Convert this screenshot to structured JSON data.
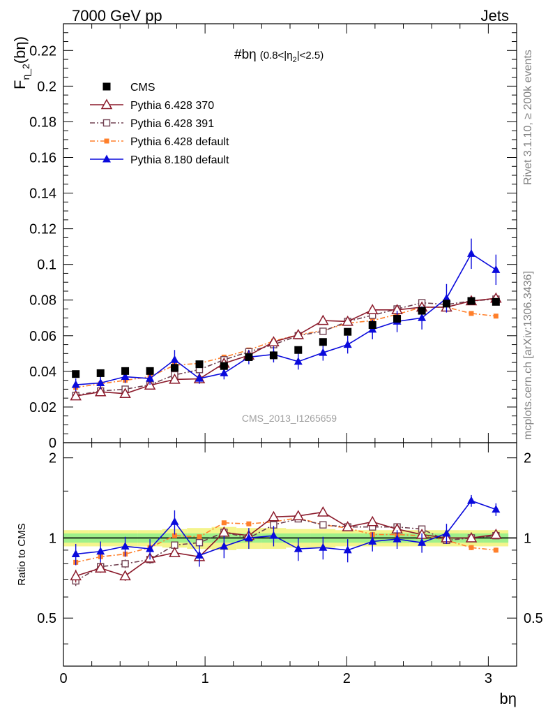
{
  "header": {
    "left": "7000 GeV pp",
    "right": "Jets"
  },
  "side_labels": {
    "rivet": "Rivet 3.1.10, ≥ 200k events",
    "mcplots": "mcplots.cern.ch [arXiv:1306.3436]"
  },
  "watermark": "CMS_2013_I1265659",
  "chart_data": [
    {
      "type": "scatter",
      "panel": "main",
      "title": "#bη (0.8<|η₂|<2.5)",
      "title_main": "#bη",
      "title_cut_a": "(0.8<|η",
      "title_cut_sub": "2",
      "title_cut_b": "|<2.5)",
      "ylabel_main": "F",
      "ylabel_sub": "η_2",
      "ylabel_arg": "(bη)",
      "xlabel": "bη",
      "xlim": [
        0,
        3.2
      ],
      "ylim": [
        0,
        0.235
      ],
      "yticks": [
        0,
        0.02,
        0.04,
        0.06,
        0.08,
        0.1,
        0.12,
        0.14,
        0.16,
        0.18,
        0.2,
        0.22
      ],
      "ytick_labels": [
        "0",
        "0.02",
        "0.04",
        "0.06",
        "0.08",
        "0.1",
        "0.12",
        "0.14",
        "0.16",
        "0.18",
        "0.2",
        "0.22"
      ],
      "x": [
        0.087,
        0.262,
        0.436,
        0.611,
        0.785,
        0.96,
        1.134,
        1.309,
        1.484,
        1.658,
        1.833,
        2.007,
        2.182,
        2.356,
        2.531,
        2.705,
        2.88,
        3.054
      ],
      "legend": [
        "CMS",
        "Pythia 6.428 370",
        "Pythia 6.428 391",
        "Pythia 6.428 default",
        "Pythia 8.180 default"
      ],
      "series": [
        {
          "name": "CMS",
          "color": "#000000",
          "values": [
            0.0385,
            0.039,
            0.0402,
            0.0402,
            0.042,
            0.044,
            0.043,
            0.048,
            0.049,
            0.052,
            0.0565,
            0.0622,
            0.066,
            0.0695,
            0.074,
            0.078,
            0.0795,
            0.079
          ]
        },
        {
          "name": "Pythia 6.428 370",
          "color": "#8b1a2b",
          "values": [
            0.0262,
            0.0285,
            0.0275,
            0.0322,
            0.0355,
            0.0358,
            0.0445,
            0.049,
            0.0565,
            0.0605,
            0.0685,
            0.068,
            0.0745,
            0.0745,
            0.076,
            0.076,
            0.0795,
            0.081
          ],
          "errors": [
            0.0015,
            0.0012,
            0.0012,
            0.0012,
            0.0012,
            0.0013,
            0.0015,
            0.0015,
            0.0015,
            0.0015,
            0.0016,
            0.0016,
            0.0018,
            0.0018,
            0.002,
            0.002,
            0.0022,
            0.0025
          ]
        },
        {
          "name": "Pythia 6.428 391",
          "color": "#704050",
          "values": [
            0.0265,
            0.029,
            0.03,
            0.0325,
            0.038,
            0.041,
            0.0465,
            0.051,
            0.055,
            0.06,
            0.0625,
            0.068,
            0.0715,
            0.075,
            0.0785,
            0.0775,
            0.0795,
            0.0805
          ],
          "errors": [
            0.0012,
            0.0011,
            0.0011,
            0.0011,
            0.0011,
            0.0012,
            0.0012,
            0.0013,
            0.0013,
            0.0014,
            0.0014,
            0.0015,
            0.0015,
            0.0016,
            0.0016,
            0.0017,
            0.0018,
            0.002
          ]
        },
        {
          "name": "Pythia 6.428 default",
          "color": "#ff7f2a",
          "values": [
            0.031,
            0.033,
            0.035,
            0.037,
            0.0435,
            0.0445,
            0.048,
            0.052,
            0.057,
            0.0605,
            0.063,
            0.067,
            0.0685,
            0.072,
            0.076,
            0.076,
            0.0725,
            0.071
          ],
          "errors": [
            0.0008,
            0.0008,
            0.0008,
            0.0008,
            0.0008,
            0.0008,
            0.0009,
            0.0009,
            0.0009,
            0.001,
            0.001,
            0.001,
            0.0011,
            0.0011,
            0.0012,
            0.0012,
            0.0012,
            0.0013
          ]
        },
        {
          "name": "Pythia 8.180 default",
          "color": "#0a0adc",
          "values": [
            0.0325,
            0.0335,
            0.037,
            0.036,
            0.0465,
            0.036,
            0.039,
            0.048,
            0.0495,
            0.0455,
            0.0505,
            0.055,
            0.0635,
            0.068,
            0.07,
            0.081,
            0.106,
            0.097
          ],
          "errors": [
            0.0035,
            0.0035,
            0.0035,
            0.0035,
            0.0055,
            0.003,
            0.0035,
            0.004,
            0.0045,
            0.0045,
            0.0045,
            0.005,
            0.0055,
            0.006,
            0.0065,
            0.008,
            0.0085,
            0.0085
          ]
        }
      ]
    },
    {
      "type": "scatter",
      "panel": "ratio",
      "ylabel": "Ratio to CMS",
      "xlabel": "bη",
      "xlim": [
        0,
        3.2
      ],
      "ylim": [
        0.33,
        2.28
      ],
      "yticks": [
        0.5,
        1,
        2
      ],
      "ytick_labels": [
        "0.5",
        "1",
        "2"
      ],
      "xticks": [
        0,
        1,
        2,
        3
      ],
      "xtick_labels": [
        "0",
        "1",
        "2",
        "3"
      ],
      "band_inner": [
        0.04,
        0.04,
        0.04,
        0.04,
        0.04,
        0.04,
        0.04,
        0.04,
        0.04,
        0.04,
        0.04,
        0.04,
        0.04,
        0.04,
        0.04,
        0.04,
        0.04,
        0.04
      ],
      "band_outer": [
        0.07,
        0.07,
        0.07,
        0.07,
        0.08,
        0.09,
        0.1,
        0.09,
        0.09,
        0.08,
        0.08,
        0.07,
        0.07,
        0.07,
        0.07,
        0.07,
        0.07,
        0.07
      ],
      "series": [
        {
          "name": "Pythia 6.428 370",
          "color": "#8b1a2b",
          "values": [
            0.72,
            0.77,
            0.72,
            0.84,
            0.88,
            0.85,
            1.05,
            1.02,
            1.2,
            1.21,
            1.25,
            1.1,
            1.15,
            1.08,
            1.03,
            1.0,
            1.0,
            1.03
          ],
          "errors": [
            0.04,
            0.03,
            0.03,
            0.03,
            0.03,
            0.03,
            0.03,
            0.03,
            0.03,
            0.03,
            0.03,
            0.03,
            0.03,
            0.03,
            0.03,
            0.03,
            0.03,
            0.03
          ]
        },
        {
          "name": "Pythia 6.428 391",
          "color": "#704050",
          "values": [
            0.69,
            0.78,
            0.8,
            0.83,
            0.94,
            0.96,
            1.05,
            1.0,
            1.12,
            1.18,
            1.12,
            1.1,
            1.1,
            1.1,
            1.08,
            0.98,
            1.0,
            1.02
          ],
          "errors": [
            0.03,
            0.03,
            0.03,
            0.03,
            0.03,
            0.03,
            0.03,
            0.03,
            0.03,
            0.03,
            0.03,
            0.03,
            0.03,
            0.03,
            0.03,
            0.03,
            0.03,
            0.03
          ]
        },
        {
          "name": "Pythia 6.428 default",
          "color": "#ff7f2a",
          "values": [
            0.81,
            0.85,
            0.87,
            0.92,
            1.02,
            1.01,
            1.14,
            1.13,
            1.15,
            1.19,
            1.12,
            1.09,
            1.03,
            1.03,
            1.02,
            0.98,
            0.92,
            0.9
          ],
          "errors": [
            0.02,
            0.02,
            0.02,
            0.02,
            0.02,
            0.02,
            0.02,
            0.02,
            0.02,
            0.02,
            0.02,
            0.02,
            0.02,
            0.02,
            0.02,
            0.02,
            0.02,
            0.02
          ]
        },
        {
          "name": "Pythia 8.180 default",
          "color": "#0a0adc",
          "values": [
            0.87,
            0.89,
            0.93,
            0.91,
            1.15,
            0.86,
            0.93,
            1.0,
            1.02,
            0.91,
            0.92,
            0.9,
            0.97,
            0.99,
            0.96,
            1.04,
            1.38,
            1.28
          ],
          "errors": [
            0.08,
            0.08,
            0.08,
            0.08,
            0.12,
            0.08,
            0.09,
            0.09,
            0.09,
            0.09,
            0.09,
            0.09,
            0.08,
            0.08,
            0.08,
            0.09,
            0.07,
            0.07
          ]
        }
      ]
    }
  ]
}
